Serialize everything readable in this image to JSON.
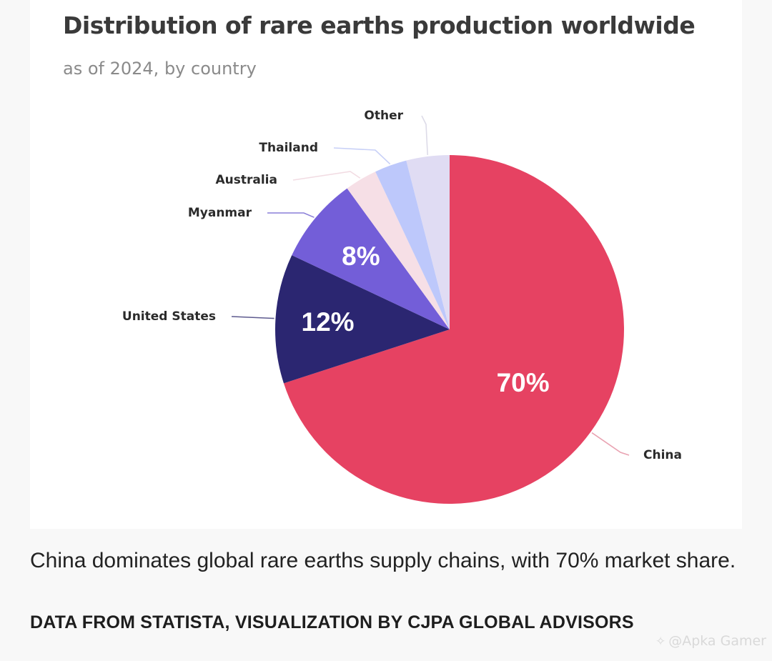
{
  "chart_data": {
    "type": "pie",
    "title": "Distribution of rare earths production worldwide",
    "subtitle": "as of 2024, by country",
    "slices": [
      {
        "name": "China",
        "value": 70,
        "label": "70%",
        "color": "#e64262"
      },
      {
        "name": "United States",
        "value": 12,
        "label": "12%",
        "color": "#2b2671"
      },
      {
        "name": "Myanmar",
        "value": 8,
        "label": "8%",
        "color": "#735ed8"
      },
      {
        "name": "Australia",
        "value": 3,
        "label": "",
        "color": "#f6dfe6"
      },
      {
        "name": "Thailand",
        "value": 3,
        "label": "",
        "color": "#bdc8fb"
      },
      {
        "name": "Other",
        "value": 4,
        "label": "",
        "color": "#e0dcf3"
      }
    ],
    "legend": "none",
    "labels": "outside-with-leader-lines"
  },
  "caption": "China dominates global rare earths supply chains, with 70% market share.",
  "credit": "DATA FROM STATISTA, VISUALIZATION BY CJPA GLOBAL ADVISORS",
  "watermark": {
    "text": "@Apka Gamer",
    "icon": "watermark-logo-icon"
  }
}
